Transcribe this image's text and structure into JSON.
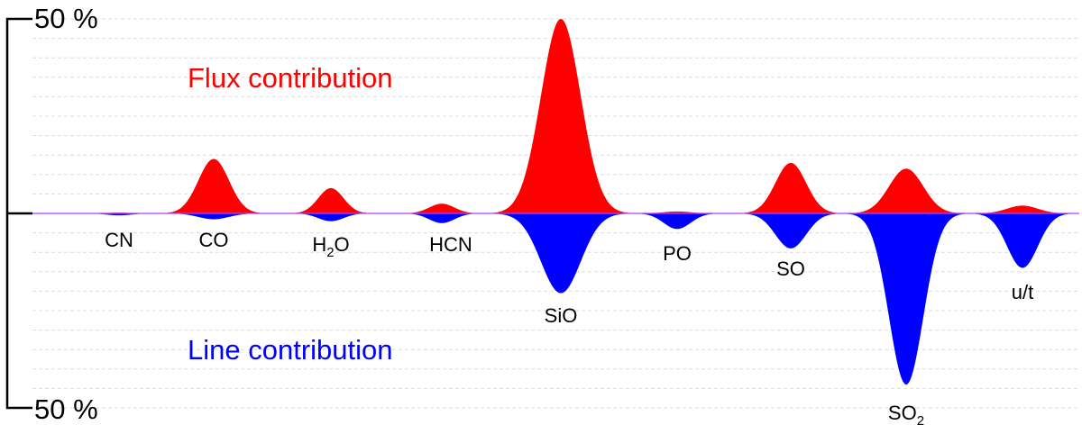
{
  "chart_data": {
    "type": "area",
    "title": "",
    "xlabel": "",
    "ylabel": "",
    "y_axis": {
      "top_label": "50 %",
      "bottom_label": "50 %",
      "range_percent": [
        -50,
        50
      ],
      "grid": true,
      "grid_step_percent": 5
    },
    "annotations": {
      "flux": "Flux contribution",
      "line": "Line contribution"
    },
    "colors": {
      "flux": "#ff0000",
      "line": "#0000ff",
      "baseline_tint": "#b040ff"
    },
    "series": [
      {
        "key": "flux",
        "values": [
          0.2,
          14,
          6.5,
          2.5,
          50,
          0.5,
          13,
          11.5,
          2
        ]
      },
      {
        "key": "line",
        "values": [
          0.5,
          1.5,
          2,
          2.5,
          20.5,
          4,
          9,
          44,
          14
        ]
      }
    ],
    "molecules": [
      {
        "label": "CN",
        "sub": "",
        "tail": "",
        "flux": 0.2,
        "line": 0.5
      },
      {
        "label": "CO",
        "sub": "",
        "tail": "",
        "flux": 14,
        "line": 1.5
      },
      {
        "label": "H",
        "sub": "2",
        "tail": "O",
        "flux": 6.5,
        "line": 2
      },
      {
        "label": "HCN",
        "sub": "",
        "tail": "",
        "flux": 2.5,
        "line": 2.5
      },
      {
        "label": "SiO",
        "sub": "",
        "tail": "",
        "flux": 50,
        "line": 20.5
      },
      {
        "label": "PO",
        "sub": "",
        "tail": "",
        "flux": 0.5,
        "line": 4
      },
      {
        "label": "SO",
        "sub": "",
        "tail": "",
        "flux": 13,
        "line": 9
      },
      {
        "label": "SO",
        "sub": "2",
        "tail": "",
        "flux": 11.5,
        "line": 44
      },
      {
        "label": "u/t",
        "sub": "",
        "tail": "",
        "flux": 2,
        "line": 14
      }
    ]
  }
}
